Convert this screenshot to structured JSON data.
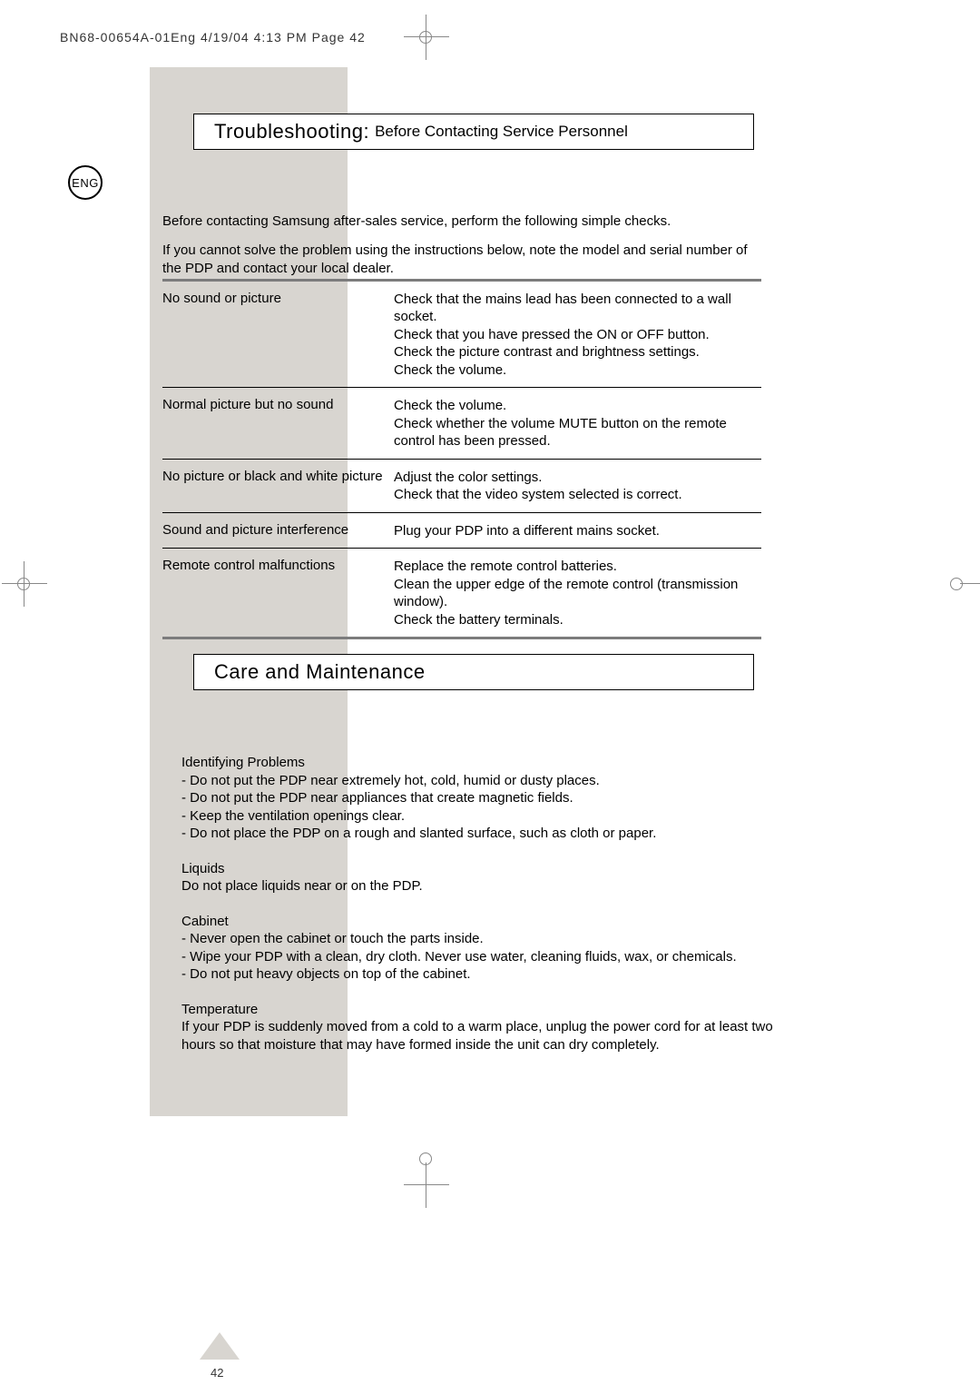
{
  "header": {
    "text": "BN68-00654A-01Eng  4/19/04  4:13 PM  Page 42"
  },
  "badge": "ENG",
  "section1": {
    "title_main": "Troubleshooting:",
    "title_sub": "Before Contacting Service Personnel",
    "intro1": "Before contacting Samsung after-sales service, perform the following simple checks.",
    "intro2": "If you cannot solve the problem using the instructions below, note the model and serial number of the PDP and contact your local dealer."
  },
  "troubleshooting_table": {
    "rows": [
      {
        "problem": "No sound or picture",
        "solution": "Check that the mains lead has been connected to a wall socket.\nCheck that you have pressed the ON or OFF button.\nCheck the picture contrast and brightness settings.\nCheck the volume."
      },
      {
        "problem": "Normal picture but no sound",
        "solution": "Check the volume.\nCheck whether the volume MUTE button on the remote control has been pressed."
      },
      {
        "problem": "No picture or black and white picture",
        "solution": "Adjust the color settings.\nCheck that the video system selected is correct."
      },
      {
        "problem": "Sound and picture interference",
        "solution": "Plug your PDP into a different mains socket."
      },
      {
        "problem": "Remote control malfunctions",
        "solution": "Replace the remote control batteries.\nClean the upper edge of the remote control (transmission window).\nCheck the battery terminals."
      }
    ]
  },
  "section2": {
    "title": "Care and Maintenance"
  },
  "care": {
    "identifying_heading": "Identifying Problems",
    "identifying_items": "- Do not put the PDP near extremely hot, cold, humid or dusty places.\n- Do not put the PDP near appliances that create magnetic fields.\n- Keep the ventilation openings clear.\n- Do not place the PDP on a rough and slanted surface, such as cloth or paper.",
    "liquids_heading": "Liquids",
    "liquids_text": "Do not place liquids near or on the PDP.",
    "cabinet_heading": "Cabinet",
    "cabinet_items": "- Never open the cabinet or touch the parts inside.\n- Wipe your PDP with a clean, dry cloth. Never use water, cleaning fluids, wax, or chemicals.\n- Do not put heavy objects on top of the cabinet.",
    "temperature_heading": "Temperature",
    "temperature_text": "If your PDP is suddenly moved from a cold to a warm place, unplug the power cord for at least two hours so that moisture that may have formed inside the unit can dry completely."
  },
  "page_number": "42"
}
